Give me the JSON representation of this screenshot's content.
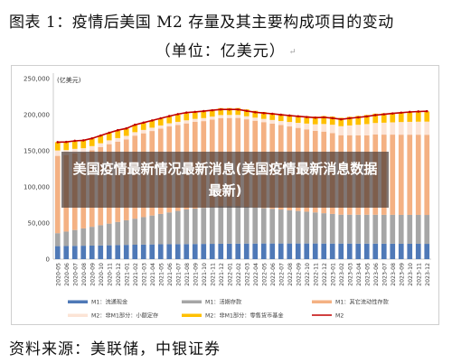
{
  "figure": {
    "title": "图表 1：疫情后美国 M2 存量及其主要构成项目的变动",
    "unit": "（单位：亿美元）",
    "unit_mark": "↵",
    "source": "资料来源：美联储，中银证券",
    "overlay_text": "美国疫情最新情况最新消息(美国疫情最新消息数据最新)"
  },
  "chart_data": {
    "type": "bar",
    "stacked": true,
    "unit_label": "(亿美元)",
    "ylim": [
      0,
      250000
    ],
    "yticks": [
      "0",
      "50,000",
      "100,000",
      "150,000",
      "200,000",
      "250,000"
    ],
    "grid": false,
    "legend_position": "bottom",
    "categories": [
      "2020-05",
      "2020-06",
      "2020-07",
      "2020-08",
      "2020-09",
      "2020-10",
      "2020-11",
      "2020-12",
      "2021-01",
      "2021-02",
      "2021-03",
      "2021-04",
      "2021-05",
      "2021-06",
      "2021-07",
      "2021-08",
      "2021-09",
      "2021-10",
      "2021-11",
      "2021-12",
      "2022-01",
      "2022-02",
      "2022-03",
      "2022-04",
      "2022-05",
      "2022-06",
      "2022-07",
      "2022-08",
      "2022-09",
      "2022-10",
      "2022-11",
      "2022-12",
      "2023-01",
      "2023-02",
      "2023-03",
      "2023-04",
      "2023-05",
      "2023-06",
      "2023-07",
      "2023-08",
      "2023-09",
      "2023-10",
      "2023-11",
      "2023-12"
    ],
    "series": [
      {
        "name": "M1：流通现金",
        "color": "#4f79b7",
        "values": [
          18000,
          18200,
          18400,
          18600,
          18800,
          19000,
          19200,
          19500,
          19800,
          20000,
          20200,
          20400,
          20600,
          20700,
          20800,
          20900,
          21000,
          21100,
          21200,
          21300,
          21400,
          21500,
          21600,
          21600,
          21700,
          21700,
          21700,
          21700,
          21700,
          21700,
          21700,
          21600,
          21600,
          21600,
          21600,
          21500,
          21500,
          21500,
          21400,
          21400,
          21300,
          21300,
          21300,
          21200
        ]
      },
      {
        "name": "M1：活期存款",
        "color": "#a6a6a6",
        "values": [
          18000,
          20000,
          22000,
          24000,
          26000,
          28000,
          30000,
          32000,
          34000,
          36000,
          38000,
          40000,
          42000,
          44000,
          46000,
          48000,
          49000,
          50000,
          51000,
          52000,
          52000,
          52000,
          51000,
          50000,
          49000,
          48000,
          47000,
          46000,
          45000,
          44000,
          43000,
          42000,
          41000,
          40000,
          40000,
          40000,
          40000,
          40000,
          40000,
          40000,
          40000,
          40000,
          40000,
          40000
        ]
      },
      {
        "name": "M1：其它流动性存款",
        "color": "#f4b183",
        "values": [
          107000,
          106000,
          106000,
          105000,
          106000,
          108000,
          110000,
          111000,
          112000,
          115000,
          116000,
          117000,
          118000,
          119000,
          119000,
          119000,
          120000,
          120000,
          121000,
          122000,
          122000,
          122000,
          121000,
          120000,
          119000,
          118000,
          117000,
          116000,
          115000,
          114000,
          113000,
          113000,
          112000,
          110000,
          110000,
          110000,
          110000,
          111000,
          111000,
          111000,
          111000,
          111000,
          111000,
          111000
        ]
      },
      {
        "name": "M2：非M1部分：小额定存",
        "color": "#fce4d6",
        "values": [
          7500,
          6800,
          6300,
          6000,
          5700,
          5500,
          5300,
          5100,
          4900,
          4800,
          4700,
          4600,
          4500,
          4400,
          4300,
          4300,
          4200,
          4200,
          4200,
          4200,
          4200,
          4200,
          4200,
          4300,
          4500,
          5000,
          5500,
          6200,
          7000,
          8000,
          9000,
          10500,
          11500,
          12500,
          13500,
          14500,
          15500,
          16000,
          16500,
          17000,
          17500,
          17800,
          18000,
          18200
        ]
      },
      {
        "name": "M2：非M1部分：零售货币基金",
        "color": "#ffc000",
        "values": [
          11500,
          11300,
          11100,
          10900,
          10700,
          10600,
          10500,
          10400,
          10300,
          10200,
          10100,
          10000,
          9900,
          9800,
          9800,
          9700,
          9700,
          9600,
          9600,
          9600,
          9600,
          9500,
          9500,
          9500,
          9500,
          9500,
          9700,
          9900,
          10100,
          10300,
          10600,
          11000,
          11300,
          11600,
          12000,
          12300,
          12600,
          12900,
          13100,
          13300,
          13500,
          13700,
          13800,
          14000
        ]
      }
    ],
    "line": {
      "name": "M2",
      "color": "#c00000",
      "values": [
        162000,
        162300,
        163800,
        164500,
        167200,
        171100,
        175000,
        178500,
        181000,
        186000,
        189000,
        192000,
        195000,
        198000,
        200700,
        202900,
        203900,
        204900,
        206100,
        207300,
        207200,
        207200,
        205300,
        203400,
        202200,
        201200,
        199900,
        198800,
        197800,
        196700,
        195900,
        196400,
        195200,
        193600,
        195100,
        196300,
        197600,
        199400,
        200500,
        201700,
        202800,
        203800,
        204400,
        204800
      ]
    }
  }
}
